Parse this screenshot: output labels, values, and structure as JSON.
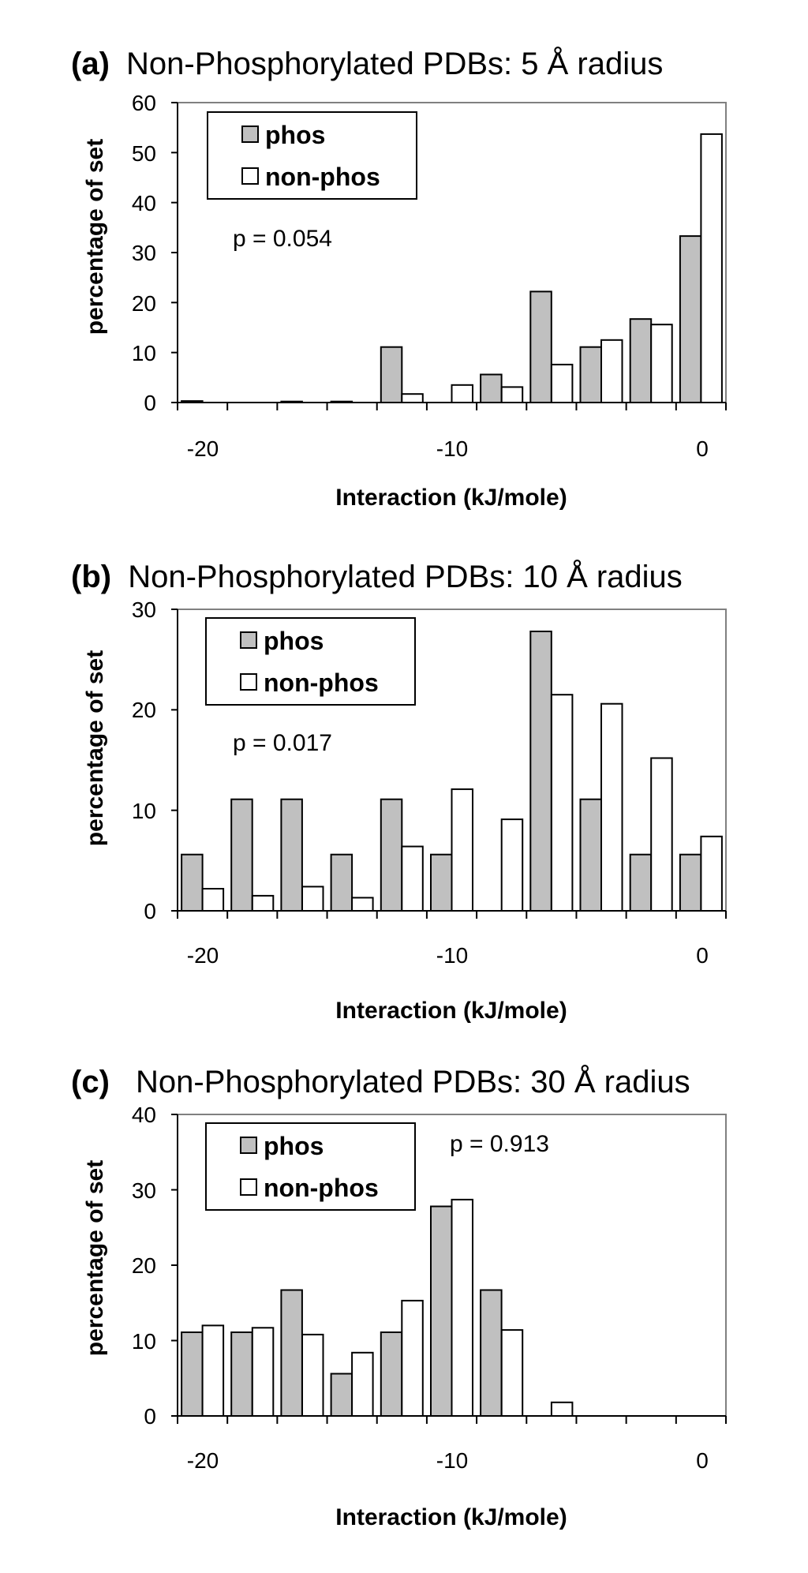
{
  "chart_data": [
    {
      "type": "bar",
      "panel": "(a)",
      "title": "Non-Phosphorylated PDBs: 5 Å radius",
      "xlabel": "Interaction (kJ/mole)",
      "ylabel": "percentage of set",
      "xlim": [
        -21,
        1
      ],
      "ylim": [
        0,
        60
      ],
      "yticks": [
        "0",
        "10",
        "20",
        "30",
        "40",
        "50",
        "60"
      ],
      "xticks": [
        "-20",
        "-10",
        "0"
      ],
      "grid": false,
      "legend_position": "top-left",
      "annotation": "p = 0.054",
      "series": [
        {
          "name": "phos",
          "color": "#c0c0c0",
          "values": [
            0.3,
            0,
            0.2,
            0.2,
            11.1,
            0,
            5.6,
            22.2,
            11.1,
            16.7,
            33.3
          ]
        },
        {
          "name": "non-phos",
          "color": "#ffffff",
          "values": [
            0,
            0,
            0,
            0,
            1.7,
            3.5,
            3.1,
            7.6,
            12.5,
            15.6,
            53.7
          ]
        }
      ],
      "bin_centers": [
        -20,
        -18,
        -16,
        -14,
        -12,
        -10,
        -8,
        -6,
        -4,
        -2,
        0
      ]
    },
    {
      "type": "bar",
      "panel": "(b)",
      "title": "Non-Phosphorylated PDBs: 10 Å radius",
      "xlabel": "Interaction (kJ/mole)",
      "ylabel": "percentage of set",
      "xlim": [
        -21,
        1
      ],
      "ylim": [
        0,
        30
      ],
      "yticks": [
        "0",
        "10",
        "20",
        "30"
      ],
      "xticks": [
        "-20",
        "-10",
        "0"
      ],
      "grid": false,
      "legend_position": "top-left",
      "annotation": "p = 0.017",
      "series": [
        {
          "name": "phos",
          "color": "#c0c0c0",
          "values": [
            5.6,
            11.1,
            11.1,
            5.6,
            11.1,
            5.6,
            0,
            27.8,
            11.1,
            5.6,
            5.6
          ]
        },
        {
          "name": "non-phos",
          "color": "#ffffff",
          "values": [
            2.2,
            1.5,
            2.4,
            1.3,
            6.4,
            12.1,
            9.1,
            21.5,
            20.6,
            15.2,
            7.4
          ]
        }
      ],
      "bin_centers": [
        -20,
        -18,
        -16,
        -14,
        -12,
        -10,
        -8,
        -6,
        -4,
        -2,
        0
      ]
    },
    {
      "type": "bar",
      "panel": "(c)",
      "title": "Non-Phosphorylated PDBs: 30 Å radius",
      "xlabel": "Interaction (kJ/mole)",
      "ylabel": "percentage of set",
      "xlim": [
        -21,
        1
      ],
      "ylim": [
        0,
        40
      ],
      "yticks": [
        "0",
        "10",
        "20",
        "30",
        "40"
      ],
      "xticks": [
        "-20",
        "-10",
        "0"
      ],
      "grid": false,
      "legend_position": "top-left",
      "annotation": "p = 0.913",
      "series": [
        {
          "name": "phos",
          "color": "#c0c0c0",
          "values": [
            11.1,
            11.1,
            16.7,
            5.6,
            11.1,
            27.8,
            16.7,
            0,
            0,
            0,
            0
          ]
        },
        {
          "name": "non-phos",
          "color": "#ffffff",
          "values": [
            12.0,
            11.7,
            10.8,
            8.4,
            15.3,
            28.7,
            11.4,
            1.8,
            0,
            0,
            0
          ]
        }
      ],
      "bin_centers": [
        -20,
        -18,
        -16,
        -14,
        -12,
        -10,
        -8,
        -6,
        -4,
        -2,
        0
      ]
    }
  ]
}
